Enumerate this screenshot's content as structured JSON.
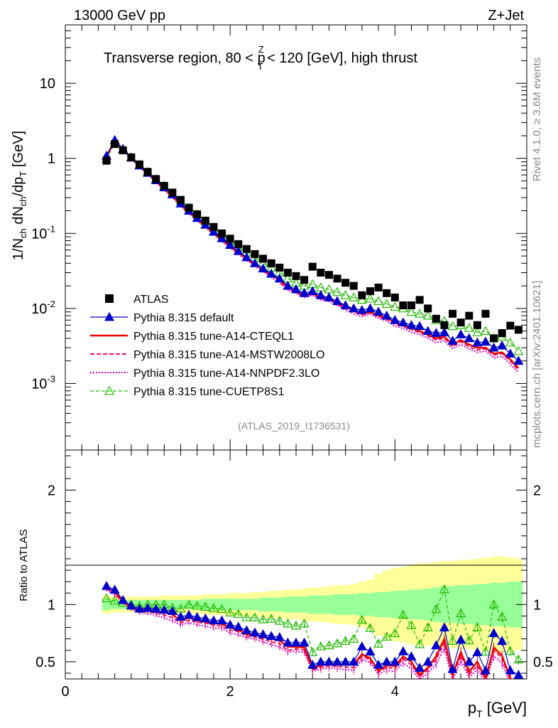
{
  "header": {
    "energy": "13000 GeV pp",
    "process": "Z+Jet",
    "title": "Transverse region, 80 < p",
    "title_sup": "Z",
    "title_sub": "T",
    "title_tail": " < 120 [GeV], high thrust",
    "watermark": "(ATLAS_2019_I1736531)",
    "side_rivet": "Rivet 4.1.0, ≥ 3.6M events",
    "side_mcplots": "mcplots.cern.ch [arXiv:2401.10621]"
  },
  "colors": {
    "atlas": "#000000",
    "default": "#0000cc",
    "cteql1": "#ee0000",
    "mstw": "#ee1166",
    "nnpdf": "#dd00cc",
    "cuetp8s1": "#22bb00",
    "band_inner": "#99ff99",
    "band_outer": "#ffff99"
  },
  "chart_data": [
    {
      "panel": "main",
      "type": "scatter",
      "ylabel_text": "1/N",
      "ylabel_sub1": "ch",
      "ylabel_mid": " dN",
      "ylabel_sub2": "ch",
      "ylabel_mid2": "/dp",
      "ylabel_sub3": "T",
      "ylabel_tail": " [GeV]",
      "yscale": "log",
      "ylim": [
        0.00013,
        60
      ],
      "xlim": [
        0,
        5.6
      ],
      "yticks": [
        {
          "base": "10",
          "exp": "-3",
          "value": 0.001
        },
        {
          "base": "10",
          "exp": "-2",
          "value": 0.01
        },
        {
          "base": "10",
          "exp": "-1",
          "value": 0.1
        },
        {
          "base": "1",
          "exp": "",
          "value": 1
        },
        {
          "base": "10",
          "exp": "",
          "value": 10
        }
      ],
      "x": [
        0.5,
        0.6,
        0.7,
        0.8,
        0.9,
        1.0,
        1.1,
        1.2,
        1.3,
        1.4,
        1.5,
        1.6,
        1.7,
        1.8,
        1.9,
        2.0,
        2.1,
        2.2,
        2.3,
        2.4,
        2.5,
        2.6,
        2.7,
        2.8,
        2.9,
        3.0,
        3.1,
        3.2,
        3.3,
        3.4,
        3.5,
        3.6,
        3.7,
        3.8,
        3.9,
        4.0,
        4.1,
        4.2,
        4.3,
        4.4,
        4.5,
        4.6,
        4.7,
        4.8,
        4.9,
        5.0,
        5.1,
        5.2,
        5.3,
        5.4,
        5.5
      ],
      "series": [
        {
          "name": "ATLAS",
          "key": "atlas",
          "values": [
            0.93,
            1.55,
            1.28,
            1.03,
            0.83,
            0.66,
            0.53,
            0.43,
            0.35,
            0.28,
            0.22,
            0.18,
            0.148,
            0.122,
            0.1,
            0.085,
            0.072,
            0.062,
            0.053,
            0.046,
            0.04,
            0.035,
            0.03,
            0.027,
            0.024,
            0.036,
            0.03,
            0.028,
            0.025,
            0.022,
            0.02,
            0.015,
            0.017,
            0.019,
            0.016,
            0.014,
            0.011,
            0.011,
            0.013,
            0.01,
            0.0073,
            0.006,
            0.0085,
            0.0065,
            0.008,
            0.006,
            0.0085,
            0.004,
            0.0047,
            0.0059,
            0.0052
          ]
        },
        {
          "name": "Pythia 8.315 default",
          "key": "default",
          "values": [
            1.08,
            1.75,
            1.33,
            1.02,
            0.8,
            0.64,
            0.51,
            0.41,
            0.33,
            0.25,
            0.2,
            0.16,
            0.13,
            0.105,
            0.086,
            0.07,
            0.058,
            0.048,
            0.04,
            0.034,
            0.029,
            0.025,
            0.02,
            0.018,
            0.016,
            0.017,
            0.015,
            0.014,
            0.0125,
            0.011,
            0.01,
            0.0095,
            0.01,
            0.009,
            0.008,
            0.007,
            0.0065,
            0.006,
            0.0058,
            0.005,
            0.0047,
            0.0048,
            0.0037,
            0.0045,
            0.004,
            0.0035,
            0.0036,
            0.003,
            0.0032,
            0.0025,
            0.002
          ]
        },
        {
          "name": "Pythia 8.315 tune-A14-CTEQL1",
          "key": "cteql1",
          "values": [
            1.07,
            1.72,
            1.32,
            1.01,
            0.79,
            0.63,
            0.5,
            0.4,
            0.32,
            0.24,
            0.195,
            0.155,
            0.126,
            0.102,
            0.083,
            0.068,
            0.056,
            0.046,
            0.039,
            0.033,
            0.028,
            0.024,
            0.019,
            0.017,
            0.015,
            0.016,
            0.014,
            0.0135,
            0.012,
            0.0105,
            0.0095,
            0.0085,
            0.009,
            0.008,
            0.0075,
            0.0065,
            0.006,
            0.0055,
            0.005,
            0.0045,
            0.004,
            0.0042,
            0.0033,
            0.0038,
            0.0033,
            0.003,
            0.003,
            0.0025,
            0.0026,
            0.0021,
            0.0016
          ]
        },
        {
          "name": "Pythia 8.315 tune-A14-MSTW2008LO",
          "key": "mstw",
          "values": [
            1.06,
            1.7,
            1.31,
            1.0,
            0.78,
            0.62,
            0.49,
            0.39,
            0.31,
            0.235,
            0.19,
            0.152,
            0.124,
            0.1,
            0.081,
            0.066,
            0.055,
            0.045,
            0.038,
            0.032,
            0.027,
            0.023,
            0.018,
            0.0165,
            0.0145,
            0.0155,
            0.0135,
            0.013,
            0.0115,
            0.01,
            0.009,
            0.0082,
            0.0088,
            0.0078,
            0.0072,
            0.0062,
            0.0058,
            0.0052,
            0.0048,
            0.0043,
            0.0038,
            0.004,
            0.0031,
            0.0036,
            0.0031,
            0.0028,
            0.0029,
            0.0024,
            0.0025,
            0.002,
            0.0015
          ]
        },
        {
          "name": "Pythia 8.315 tune-A14-NNPDF2.3LO",
          "key": "nnpdf",
          "values": [
            1.05,
            1.68,
            1.3,
            0.99,
            0.77,
            0.61,
            0.48,
            0.38,
            0.3,
            0.23,
            0.185,
            0.148,
            0.12,
            0.097,
            0.079,
            0.064,
            0.053,
            0.044,
            0.037,
            0.031,
            0.026,
            0.022,
            0.0175,
            0.016,
            0.014,
            0.015,
            0.013,
            0.0125,
            0.011,
            0.0095,
            0.0085,
            0.0078,
            0.0084,
            0.0074,
            0.0068,
            0.0058,
            0.0054,
            0.0048,
            0.0045,
            0.004,
            0.0035,
            0.0037,
            0.0029,
            0.0033,
            0.0029,
            0.0026,
            0.0027,
            0.0022,
            0.0023,
            0.0018,
            0.0014
          ]
        },
        {
          "name": "Pythia 8.315 tune-CUETP8S1",
          "key": "cuetp8s1",
          "values": [
            0.98,
            1.6,
            1.3,
            1.03,
            0.82,
            0.66,
            0.53,
            0.43,
            0.34,
            0.27,
            0.22,
            0.178,
            0.145,
            0.118,
            0.096,
            0.079,
            0.066,
            0.055,
            0.047,
            0.04,
            0.035,
            0.03,
            0.025,
            0.022,
            0.02,
            0.021,
            0.019,
            0.018,
            0.0165,
            0.015,
            0.014,
            0.013,
            0.0135,
            0.0125,
            0.0115,
            0.0105,
            0.01,
            0.009,
            0.0085,
            0.008,
            0.007,
            0.0068,
            0.0058,
            0.006,
            0.0055,
            0.0048,
            0.005,
            0.004,
            0.0042,
            0.0035,
            0.0027
          ]
        }
      ]
    },
    {
      "panel": "ratio",
      "type": "line",
      "ylabel": "Ratio to ATLAS",
      "ylim": [
        0.35,
        2.35
      ],
      "xlim": [
        0,
        5.6
      ],
      "yticks": [
        0.5,
        1,
        2
      ],
      "xticks": [
        0,
        2,
        4
      ],
      "xlabel": "p",
      "xlabel_sub": "T",
      "xlabel_tail": " [GeV]",
      "band_inner_halfwidth": [
        0.05,
        0.04,
        0.04,
        0.04,
        0.04,
        0.04,
        0.04,
        0.04,
        0.04,
        0.04,
        0.04,
        0.04,
        0.05,
        0.05,
        0.05,
        0.05,
        0.05,
        0.05,
        0.05,
        0.06,
        0.06,
        0.06,
        0.07,
        0.07,
        0.07,
        0.08,
        0.08,
        0.08,
        0.09,
        0.09,
        0.09,
        0.1,
        0.1,
        0.11,
        0.11,
        0.12,
        0.12,
        0.13,
        0.13,
        0.14,
        0.15,
        0.16,
        0.16,
        0.17,
        0.17,
        0.18,
        0.18,
        0.19,
        0.19,
        0.2,
        0.2
      ],
      "band_outer_halfwidth": [
        0.08,
        0.07,
        0.07,
        0.07,
        0.07,
        0.07,
        0.07,
        0.08,
        0.08,
        0.08,
        0.08,
        0.08,
        0.09,
        0.09,
        0.09,
        0.1,
        0.1,
        0.1,
        0.11,
        0.11,
        0.12,
        0.12,
        0.13,
        0.13,
        0.14,
        0.15,
        0.15,
        0.16,
        0.17,
        0.17,
        0.18,
        0.2,
        0.22,
        0.27,
        0.3,
        0.32,
        0.33,
        0.35,
        0.36,
        0.36,
        0.37,
        0.38,
        0.38,
        0.39,
        0.39,
        0.4,
        0.41,
        0.42,
        0.42,
        0.41,
        0.4
      ]
    }
  ]
}
